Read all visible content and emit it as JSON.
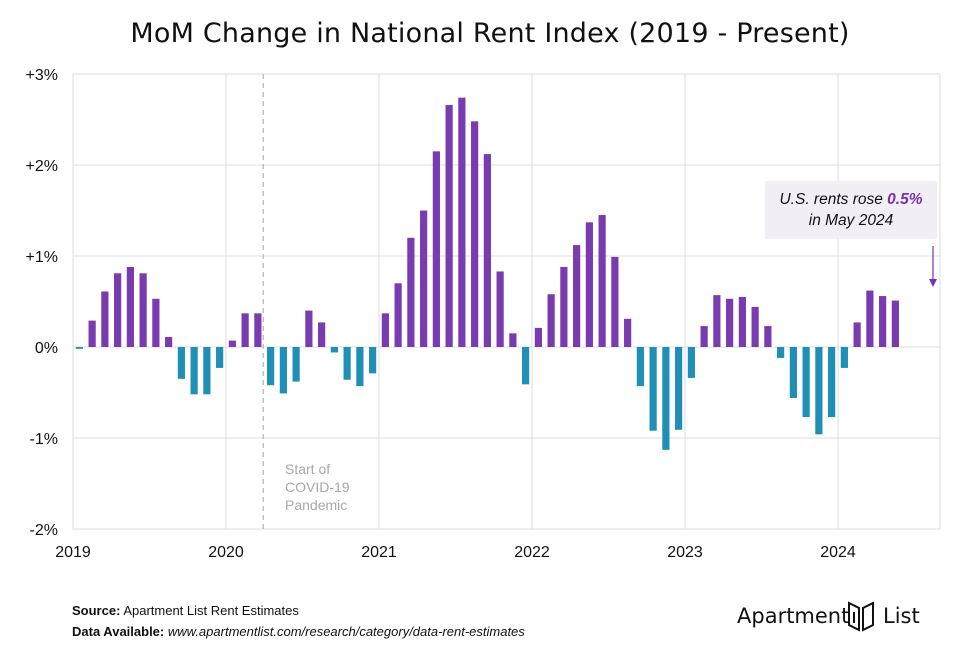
{
  "title": "MoM Change in National Rent Index (2019 - Present)",
  "callout": {
    "prefix": "U.S. rents rose ",
    "highlight": "0.5%",
    "line2": "in May 2024"
  },
  "annotation": {
    "line1": "Start of",
    "line2": "COVID-19",
    "line3": "Pandemic"
  },
  "footer": {
    "source_label": "Source:",
    "source_text": "Apartment List Rent Estimates",
    "data_label": "Data Available:",
    "data_url": "www.apartmentlist.com/research/category/data-rent-estimates"
  },
  "brand": {
    "left": "Apartment",
    "right": "List"
  },
  "colors": {
    "positive": "#7a3bb0",
    "negative": "#1f8fb5",
    "grid": "#dcdcdc",
    "covid_line": "#b5b5b5",
    "callout_bg": "#f1eef6",
    "highlight": "#7a2fb3"
  },
  "chart_data": {
    "type": "bar",
    "title": "MoM Change in National Rent Index (2019 - Present)",
    "ylim": [
      -2,
      3
    ],
    "yticks": [
      -2,
      -1,
      0,
      1,
      2,
      3
    ],
    "ytick_labels": [
      "-2%",
      "-1%",
      "0%",
      "+1%",
      "+2%",
      "+3%"
    ],
    "xticks": [
      "2019",
      "2020",
      "2021",
      "2022",
      "2023",
      "2024"
    ],
    "grid": true,
    "start": "2019-01",
    "values": [
      -0.02,
      0.29,
      0.61,
      0.81,
      0.88,
      0.81,
      0.53,
      0.11,
      -0.35,
      -0.52,
      -0.52,
      -0.23,
      0.07,
      0.37,
      0.37,
      -0.42,
      -0.51,
      -0.38,
      0.4,
      0.27,
      -0.06,
      -0.36,
      -0.43,
      -0.29,
      0.37,
      0.7,
      1.2,
      1.5,
      2.15,
      2.66,
      2.74,
      2.48,
      2.12,
      0.83,
      0.15,
      -0.41,
      0.21,
      0.58,
      0.88,
      1.12,
      1.37,
      1.45,
      0.99,
      0.31,
      -0.43,
      -0.92,
      -1.13,
      -0.91,
      -0.34,
      0.23,
      0.57,
      0.53,
      0.55,
      0.44,
      0.23,
      -0.12,
      -0.56,
      -0.77,
      -0.96,
      -0.77,
      -0.23,
      0.27,
      0.62,
      0.56,
      0.51
    ],
    "annotation_date": "2020-04"
  }
}
